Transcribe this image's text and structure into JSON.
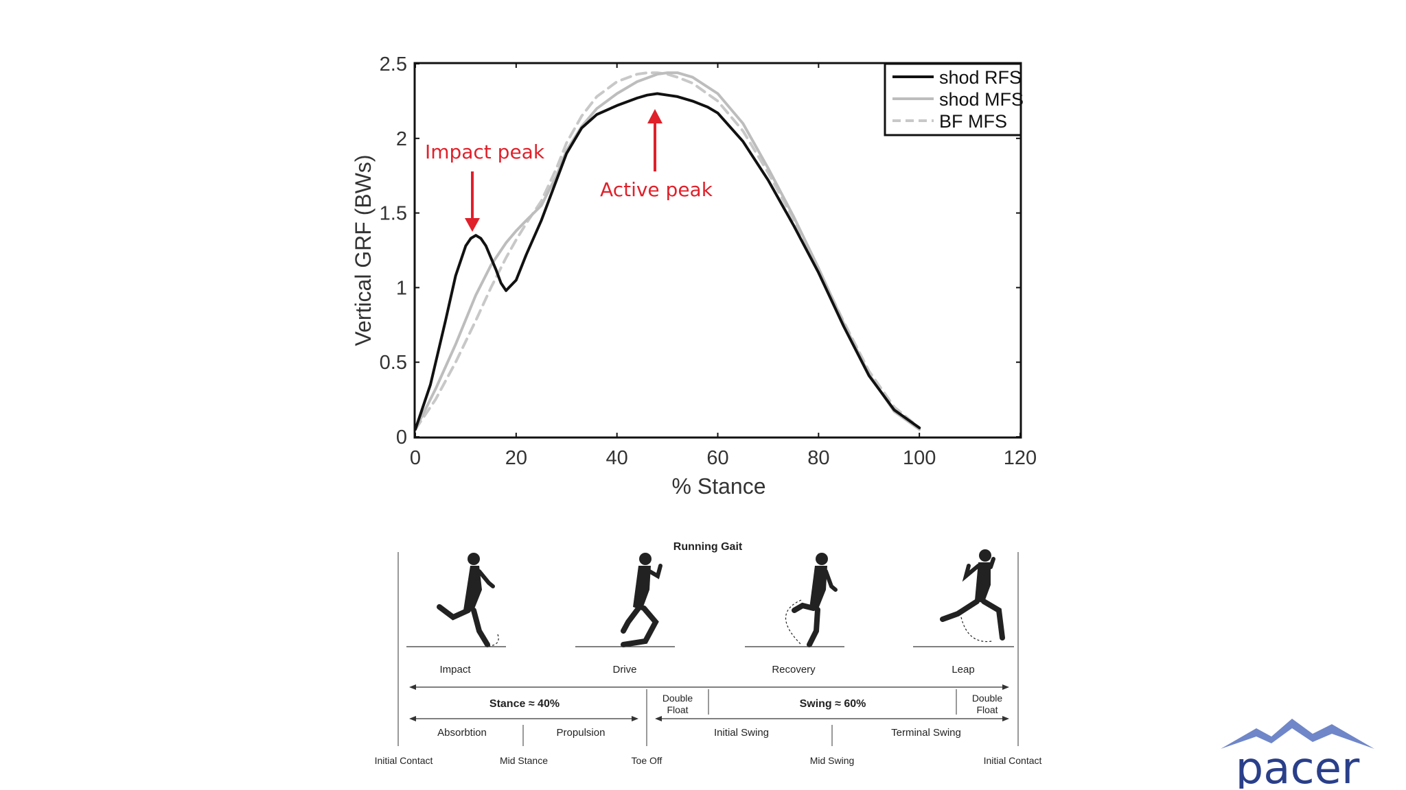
{
  "chart_data": {
    "type": "line",
    "xlabel": "% Stance",
    "ylabel": "Vertical GRF (BWs)",
    "xlim": [
      0,
      120
    ],
    "ylim": [
      0,
      2.5
    ],
    "xticks": [
      0,
      20,
      40,
      60,
      80,
      100,
      120
    ],
    "yticks": [
      0,
      0.5,
      1,
      1.5,
      2,
      2.5
    ],
    "ytick_labels": [
      "0",
      "0.5",
      "1",
      "1.5",
      "2",
      "2.5"
    ],
    "grid": false,
    "legend_position": "top-right",
    "series": [
      {
        "name": "shod RFS",
        "color": "#111111",
        "style": "solid",
        "x": [
          0,
          3,
          6,
          8,
          10,
          11,
          12,
          13,
          14,
          15,
          16,
          17,
          18,
          20,
          22,
          25,
          28,
          30,
          33,
          36,
          40,
          44,
          46,
          48,
          50,
          52,
          55,
          58,
          60,
          65,
          70,
          75,
          80,
          85,
          90,
          95,
          100
        ],
        "y": [
          0.05,
          0.35,
          0.78,
          1.08,
          1.28,
          1.33,
          1.35,
          1.33,
          1.28,
          1.2,
          1.12,
          1.03,
          0.98,
          1.05,
          1.22,
          1.45,
          1.72,
          1.9,
          2.07,
          2.16,
          2.22,
          2.27,
          2.29,
          2.3,
          2.29,
          2.28,
          2.25,
          2.21,
          2.17,
          1.98,
          1.72,
          1.42,
          1.1,
          0.74,
          0.41,
          0.18,
          0.06
        ]
      },
      {
        "name": "shod MFS",
        "color": "#bdbdbd",
        "style": "solid",
        "x": [
          0,
          4,
          8,
          12,
          15,
          18,
          20,
          22,
          25,
          28,
          30,
          33,
          36,
          40,
          44,
          48,
          50,
          52,
          55,
          60,
          65,
          70,
          75,
          80,
          85,
          90,
          95,
          100
        ],
        "y": [
          0.05,
          0.32,
          0.62,
          0.95,
          1.15,
          1.3,
          1.38,
          1.45,
          1.55,
          1.75,
          1.92,
          2.08,
          2.2,
          2.3,
          2.38,
          2.43,
          2.44,
          2.44,
          2.41,
          2.3,
          2.1,
          1.8,
          1.48,
          1.13,
          0.76,
          0.42,
          0.17,
          0.05
        ]
      },
      {
        "name": "BF MFS",
        "color": "#c8c8c8",
        "style": "dashed",
        "x": [
          0,
          4,
          8,
          12,
          15,
          18,
          20,
          22,
          25,
          28,
          30,
          33,
          36,
          40,
          44,
          46,
          48,
          50,
          52,
          55,
          60,
          65,
          70,
          75,
          80,
          85,
          90,
          95,
          100
        ],
        "y": [
          0.05,
          0.25,
          0.5,
          0.78,
          1.0,
          1.2,
          1.32,
          1.43,
          1.58,
          1.8,
          1.97,
          2.15,
          2.28,
          2.38,
          2.43,
          2.44,
          2.44,
          2.43,
          2.41,
          2.37,
          2.25,
          2.05,
          1.77,
          1.46,
          1.12,
          0.77,
          0.44,
          0.2,
          0.06
        ]
      }
    ],
    "annotations": [
      {
        "text": "Impact peak",
        "x": 12,
        "y": 1.35
      },
      {
        "text": "Active peak",
        "x": 48,
        "y": 2.3
      }
    ]
  },
  "gait": {
    "title": "Running Gait",
    "phases": [
      "Impact",
      "Drive",
      "Recovery",
      "Leap"
    ],
    "stance_label": "Stance ≈ 40%",
    "swing_label": "Swing ≈ 60%",
    "double_float": "Double\nFloat",
    "double_float_lines": [
      "Double",
      "Float"
    ],
    "sub_phases": [
      "Absorbtion",
      "Propulsion",
      "Initial Swing",
      "Terminal Swing"
    ],
    "events": [
      "Initial Contact",
      "Mid Stance",
      "Toe Off",
      "Mid Swing",
      "Initial Contact"
    ]
  },
  "logo": {
    "text": "pacer",
    "color": "#2a3f8a",
    "mountain_color": "#6f86c9"
  }
}
